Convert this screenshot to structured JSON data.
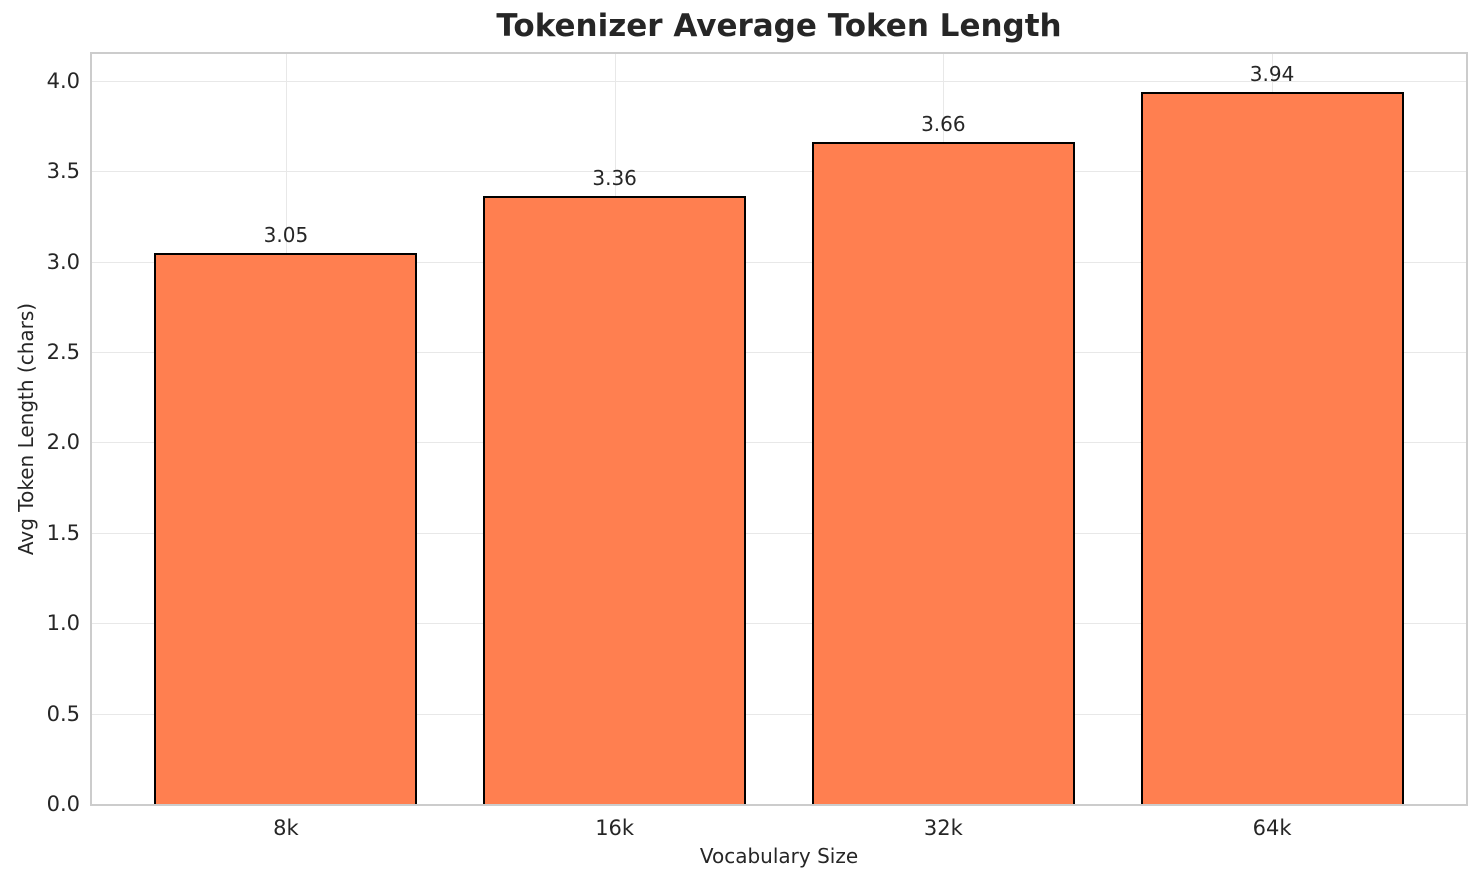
{
  "chart_data": {
    "type": "bar",
    "title": "Tokenizer Average Token Length",
    "xlabel": "Vocabulary Size",
    "ylabel": "Avg Token Length (chars)",
    "categories": [
      "8k",
      "16k",
      "32k",
      "64k"
    ],
    "values": [
      3.05,
      3.36,
      3.66,
      3.94
    ],
    "value_labels": [
      "3.05",
      "3.36",
      "3.66",
      "3.94"
    ],
    "yticks": [
      0.0,
      0.5,
      1.0,
      1.5,
      2.0,
      2.5,
      3.0,
      3.5,
      4.0
    ],
    "ytick_labels": [
      "0.0",
      "0.5",
      "1.0",
      "1.5",
      "2.0",
      "2.5",
      "3.0",
      "3.5",
      "4.0"
    ],
    "ylim": [
      0,
      4.148
    ],
    "xlim": [
      -0.59,
      3.59
    ],
    "bar_width_units": 0.8,
    "grid": true,
    "legend": "none",
    "bar_color": "#FF7F50",
    "bar_edge_color": "#000000"
  }
}
